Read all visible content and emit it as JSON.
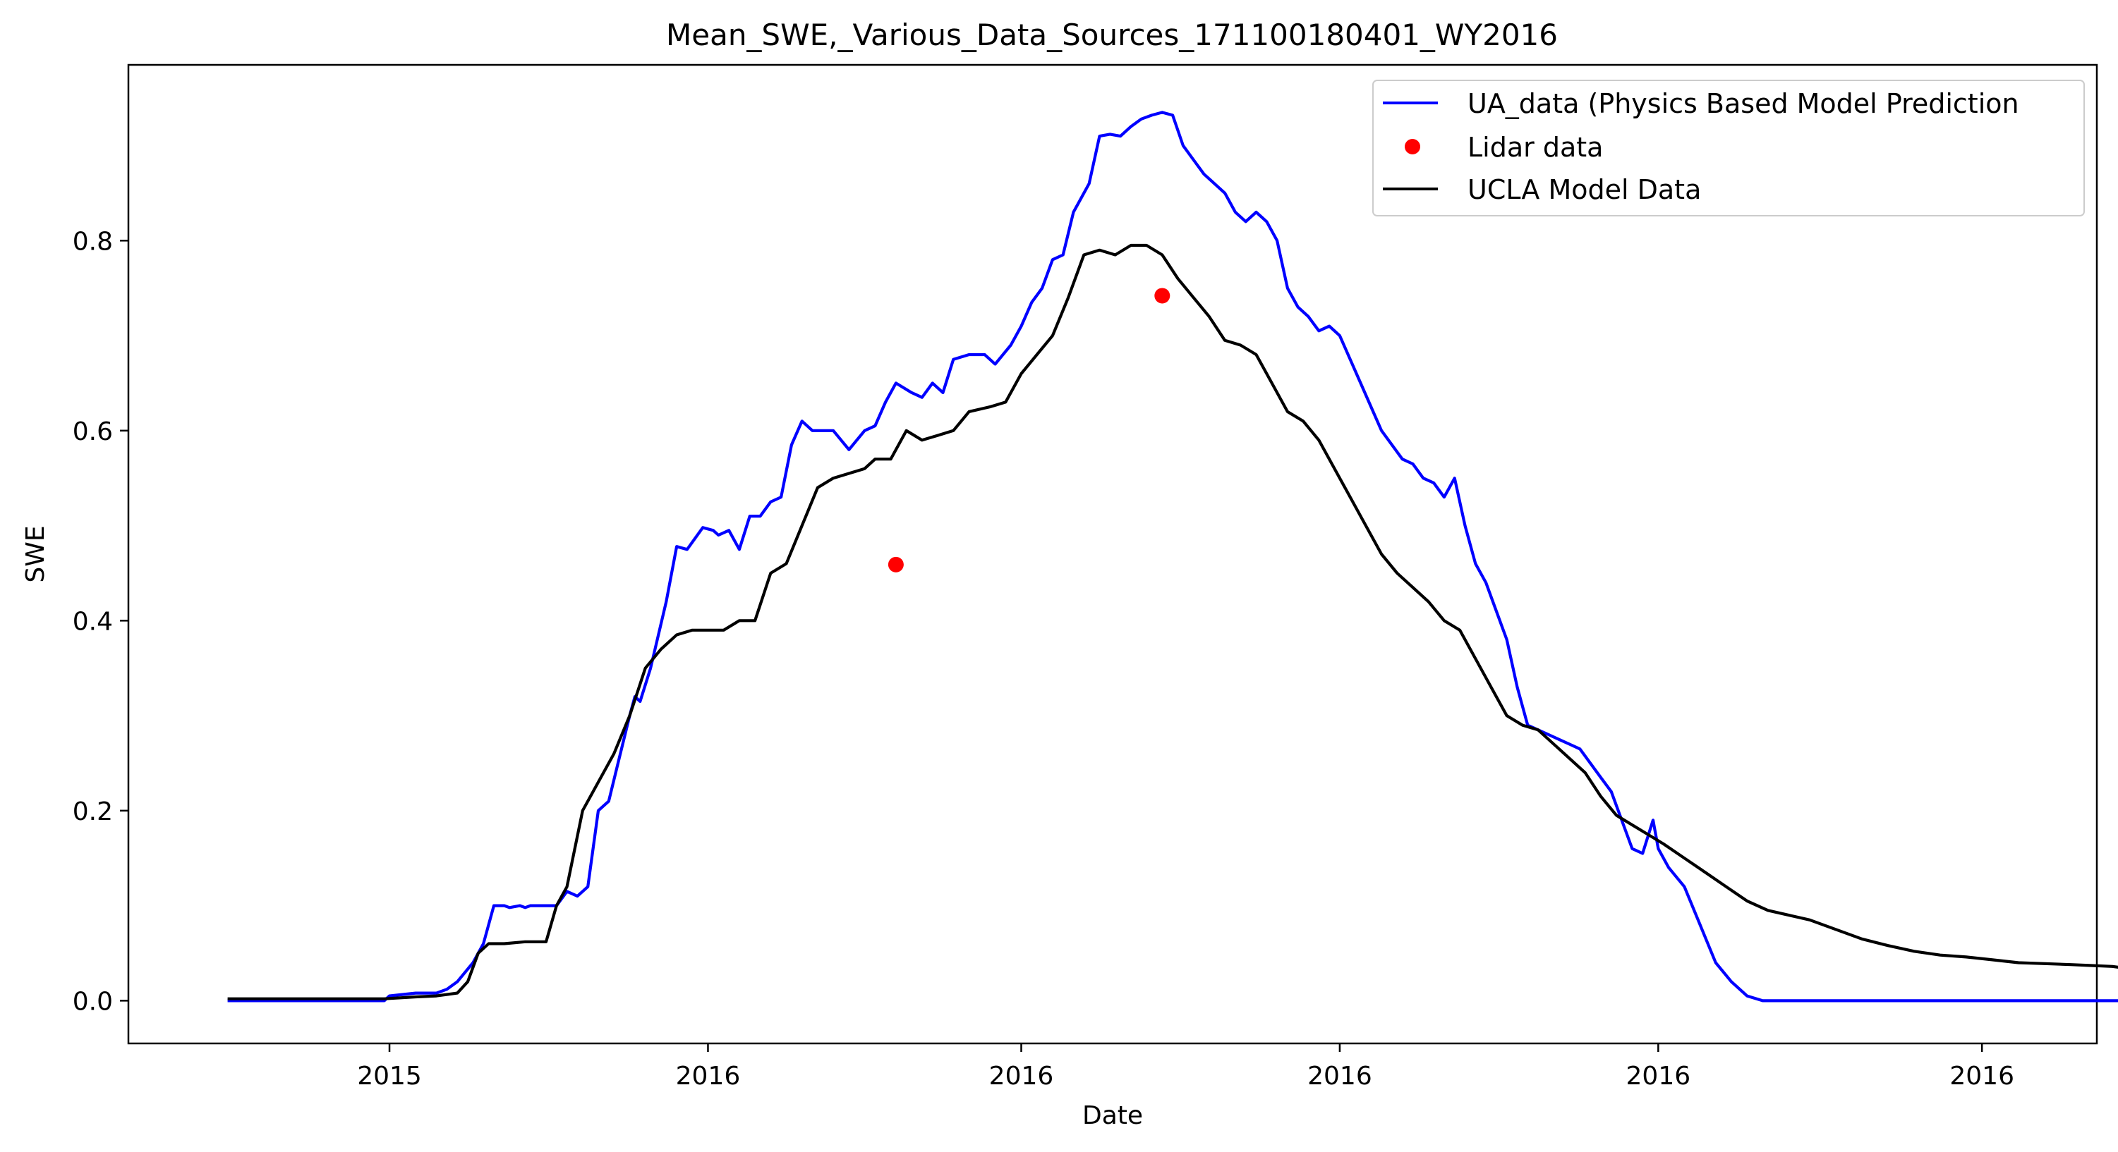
{
  "chart_data": {
    "type": "line",
    "title": "Mean_SWE,_Various_Data_Sources_171100180401_WY2016",
    "xlabel": "Date",
    "ylabel": "SWE",
    "x_range": [
      "2015-09-12",
      "2016-09-23"
    ],
    "xlim": [
      "2015-09-12",
      "2016-09-23"
    ],
    "ylim": [
      -0.045,
      0.985
    ],
    "x_ticks": [
      {
        "value": "2015-11-01",
        "label": "2015"
      },
      {
        "value": "2016-01-01",
        "label": "2016"
      },
      {
        "value": "2016-03-01",
        "label": "2016"
      },
      {
        "value": "2016-05-01",
        "label": "2016"
      },
      {
        "value": "2016-07-01",
        "label": "2016"
      },
      {
        "value": "2016-09-01",
        "label": "2016"
      }
    ],
    "y_ticks": [
      {
        "value": 0.0,
        "label": "0.0"
      },
      {
        "value": 0.2,
        "label": "0.2"
      },
      {
        "value": 0.4,
        "label": "0.4"
      },
      {
        "value": 0.6,
        "label": "0.6"
      },
      {
        "value": 0.8,
        "label": "0.8"
      }
    ],
    "grid": false,
    "legend_position": "top-right",
    "series": [
      {
        "name": "UA_data (Physics Based Model Prediction",
        "kind": "line",
        "color": "#0000ff",
        "x": [
          "2015-10-01",
          "2015-10-31",
          "2015-11-01",
          "2015-11-06",
          "2015-11-10",
          "2015-11-12",
          "2015-11-14",
          "2015-11-17",
          "2015-11-19",
          "2015-11-21",
          "2015-11-23",
          "2015-11-24",
          "2015-11-26",
          "2015-11-27",
          "2015-11-28",
          "2015-11-30",
          "2015-12-03",
          "2015-12-05",
          "2015-12-07",
          "2015-12-09",
          "2015-12-11",
          "2015-12-13",
          "2015-12-15",
          "2015-12-17",
          "2015-12-18",
          "2015-12-19",
          "2015-12-21",
          "2015-12-24",
          "2015-12-26",
          "2015-12-28",
          "2015-12-31",
          "2016-01-02",
          "2016-01-03",
          "2016-01-05",
          "2016-01-07",
          "2016-01-09",
          "2016-01-11",
          "2016-01-13",
          "2016-01-15",
          "2016-01-17",
          "2016-01-19",
          "2016-01-21",
          "2016-01-23",
          "2016-01-25",
          "2016-01-28",
          "2016-01-31",
          "2016-02-02",
          "2016-02-04",
          "2016-02-06",
          "2016-02-09",
          "2016-02-11",
          "2016-02-13",
          "2016-02-15",
          "2016-02-17",
          "2016-02-20",
          "2016-02-23",
          "2016-02-25",
          "2016-02-28",
          "2016-03-01",
          "2016-03-03",
          "2016-03-05",
          "2016-03-07",
          "2016-03-09",
          "2016-03-11",
          "2016-03-14",
          "2016-03-16",
          "2016-03-18",
          "2016-03-20",
          "2016-03-22",
          "2016-03-24",
          "2016-03-26",
          "2016-03-28",
          "2016-03-30",
          "2016-04-01",
          "2016-04-03",
          "2016-04-05",
          "2016-04-07",
          "2016-04-09",
          "2016-04-11",
          "2016-04-13",
          "2016-04-15",
          "2016-04-17",
          "2016-04-19",
          "2016-04-21",
          "2016-04-23",
          "2016-04-25",
          "2016-04-27",
          "2016-04-29",
          "2016-05-01",
          "2016-05-03",
          "2016-05-05",
          "2016-05-07",
          "2016-05-09",
          "2016-05-11",
          "2016-05-13",
          "2016-05-15",
          "2016-05-17",
          "2016-05-19",
          "2016-05-21",
          "2016-05-23",
          "2016-05-25",
          "2016-05-27",
          "2016-05-29",
          "2016-05-31",
          "2016-06-02",
          "2016-06-04",
          "2016-06-06",
          "2016-06-08",
          "2016-06-10",
          "2016-06-12",
          "2016-06-14",
          "2016-06-16",
          "2016-06-18",
          "2016-06-20",
          "2016-06-22",
          "2016-06-24",
          "2016-06-26",
          "2016-06-28",
          "2016-06-30",
          "2016-07-01",
          "2016-07-03",
          "2016-07-06",
          "2016-07-09",
          "2016-07-12",
          "2016-07-15",
          "2016-07-18",
          "2016-07-21",
          "2016-07-23",
          "2016-07-24",
          "2016-09-30"
        ],
        "y": [
          0.0,
          0.0,
          0.005,
          0.008,
          0.008,
          0.012,
          0.02,
          0.04,
          0.06,
          0.1,
          0.1,
          0.098,
          0.1,
          0.098,
          0.1,
          0.1,
          0.1,
          0.115,
          0.11,
          0.12,
          0.2,
          0.21,
          0.255,
          0.3,
          0.32,
          0.315,
          0.35,
          0.42,
          0.478,
          0.475,
          0.498,
          0.495,
          0.49,
          0.495,
          0.475,
          0.51,
          0.51,
          0.525,
          0.53,
          0.585,
          0.61,
          0.6,
          0.6,
          0.6,
          0.58,
          0.6,
          0.605,
          0.63,
          0.65,
          0.64,
          0.635,
          0.65,
          0.64,
          0.675,
          0.68,
          0.68,
          0.67,
          0.69,
          0.71,
          0.735,
          0.75,
          0.78,
          0.785,
          0.83,
          0.86,
          0.91,
          0.912,
          0.91,
          0.92,
          0.928,
          0.932,
          0.935,
          0.932,
          0.9,
          0.885,
          0.87,
          0.86,
          0.85,
          0.83,
          0.82,
          0.83,
          0.82,
          0.8,
          0.75,
          0.73,
          0.72,
          0.705,
          0.71,
          0.7,
          0.675,
          0.65,
          0.625,
          0.6,
          0.585,
          0.57,
          0.565,
          0.55,
          0.545,
          0.53,
          0.55,
          0.5,
          0.46,
          0.44,
          0.41,
          0.38,
          0.33,
          0.29,
          0.285,
          0.28,
          0.275,
          0.27,
          0.265,
          0.25,
          0.235,
          0.22,
          0.19,
          0.16,
          0.155,
          0.19,
          0.16,
          0.14,
          0.12,
          0.08,
          0.04,
          0.02,
          0.005,
          0.0,
          0.0,
          0.0,
          0.0
        ]
      },
      {
        "name": "UCLA Model Data",
        "kind": "line",
        "color": "#000000",
        "x": [
          "2015-10-01",
          "2015-10-31",
          "2015-11-06",
          "2015-11-10",
          "2015-11-14",
          "2015-11-16",
          "2015-11-18",
          "2015-11-20",
          "2015-11-23",
          "2015-11-27",
          "2015-12-01",
          "2015-12-03",
          "2015-12-05",
          "2015-12-08",
          "2015-12-11",
          "2015-12-14",
          "2015-12-17",
          "2015-12-20",
          "2015-12-23",
          "2015-12-26",
          "2015-12-29",
          "2016-01-01",
          "2016-01-04",
          "2016-01-07",
          "2016-01-10",
          "2016-01-13",
          "2016-01-16",
          "2016-01-19",
          "2016-01-22",
          "2016-01-25",
          "2016-01-28",
          "2016-01-31",
          "2016-02-02",
          "2016-02-05",
          "2016-02-08",
          "2016-02-11",
          "2016-02-14",
          "2016-02-17",
          "2016-02-20",
          "2016-02-24",
          "2016-02-27",
          "2016-03-01",
          "2016-03-04",
          "2016-03-07",
          "2016-03-10",
          "2016-03-13",
          "2016-03-16",
          "2016-03-19",
          "2016-03-22",
          "2016-03-25",
          "2016-03-28",
          "2016-03-31",
          "2016-04-03",
          "2016-04-06",
          "2016-04-09",
          "2016-04-12",
          "2016-04-15",
          "2016-04-18",
          "2016-04-21",
          "2016-04-24",
          "2016-04-27",
          "2016-04-30",
          "2016-05-03",
          "2016-05-06",
          "2016-05-09",
          "2016-05-12",
          "2016-05-15",
          "2016-05-18",
          "2016-05-21",
          "2016-05-24",
          "2016-05-27",
          "2016-05-30",
          "2016-06-02",
          "2016-06-05",
          "2016-06-08",
          "2016-06-11",
          "2016-06-14",
          "2016-06-17",
          "2016-06-20",
          "2016-06-23",
          "2016-06-26",
          "2016-06-29",
          "2016-07-02",
          "2016-07-06",
          "2016-07-10",
          "2016-07-14",
          "2016-07-18",
          "2016-07-22",
          "2016-07-26",
          "2016-07-30",
          "2016-08-04",
          "2016-08-09",
          "2016-08-14",
          "2016-08-19",
          "2016-08-24",
          "2016-08-29",
          "2016-09-03",
          "2016-09-08",
          "2016-09-13",
          "2016-09-18",
          "2016-09-22",
          "2016-09-26",
          "2016-09-30"
        ],
        "y": [
          0.002,
          0.002,
          0.004,
          0.005,
          0.008,
          0.02,
          0.05,
          0.06,
          0.06,
          0.062,
          0.062,
          0.1,
          0.12,
          0.2,
          0.23,
          0.26,
          0.3,
          0.35,
          0.37,
          0.385,
          0.39,
          0.39,
          0.39,
          0.4,
          0.4,
          0.45,
          0.46,
          0.5,
          0.54,
          0.55,
          0.555,
          0.56,
          0.57,
          0.57,
          0.6,
          0.59,
          0.595,
          0.6,
          0.62,
          0.625,
          0.63,
          0.66,
          0.68,
          0.7,
          0.74,
          0.785,
          0.79,
          0.785,
          0.795,
          0.795,
          0.785,
          0.76,
          0.74,
          0.72,
          0.695,
          0.69,
          0.68,
          0.65,
          0.62,
          0.61,
          0.59,
          0.56,
          0.53,
          0.5,
          0.47,
          0.45,
          0.435,
          0.42,
          0.4,
          0.39,
          0.36,
          0.33,
          0.3,
          0.29,
          0.285,
          0.27,
          0.255,
          0.24,
          0.215,
          0.195,
          0.185,
          0.175,
          0.165,
          0.15,
          0.135,
          0.12,
          0.105,
          0.095,
          0.09,
          0.085,
          0.075,
          0.065,
          0.058,
          0.052,
          0.048,
          0.046,
          0.043,
          0.04,
          0.039,
          0.038,
          0.037,
          0.036,
          0.033
        ]
      },
      {
        "name": "Lidar data",
        "kind": "scatter",
        "color": "#ff0000",
        "x": [
          "2016-02-06",
          "2016-03-28"
        ],
        "y": [
          0.459,
          0.742
        ]
      }
    ]
  }
}
